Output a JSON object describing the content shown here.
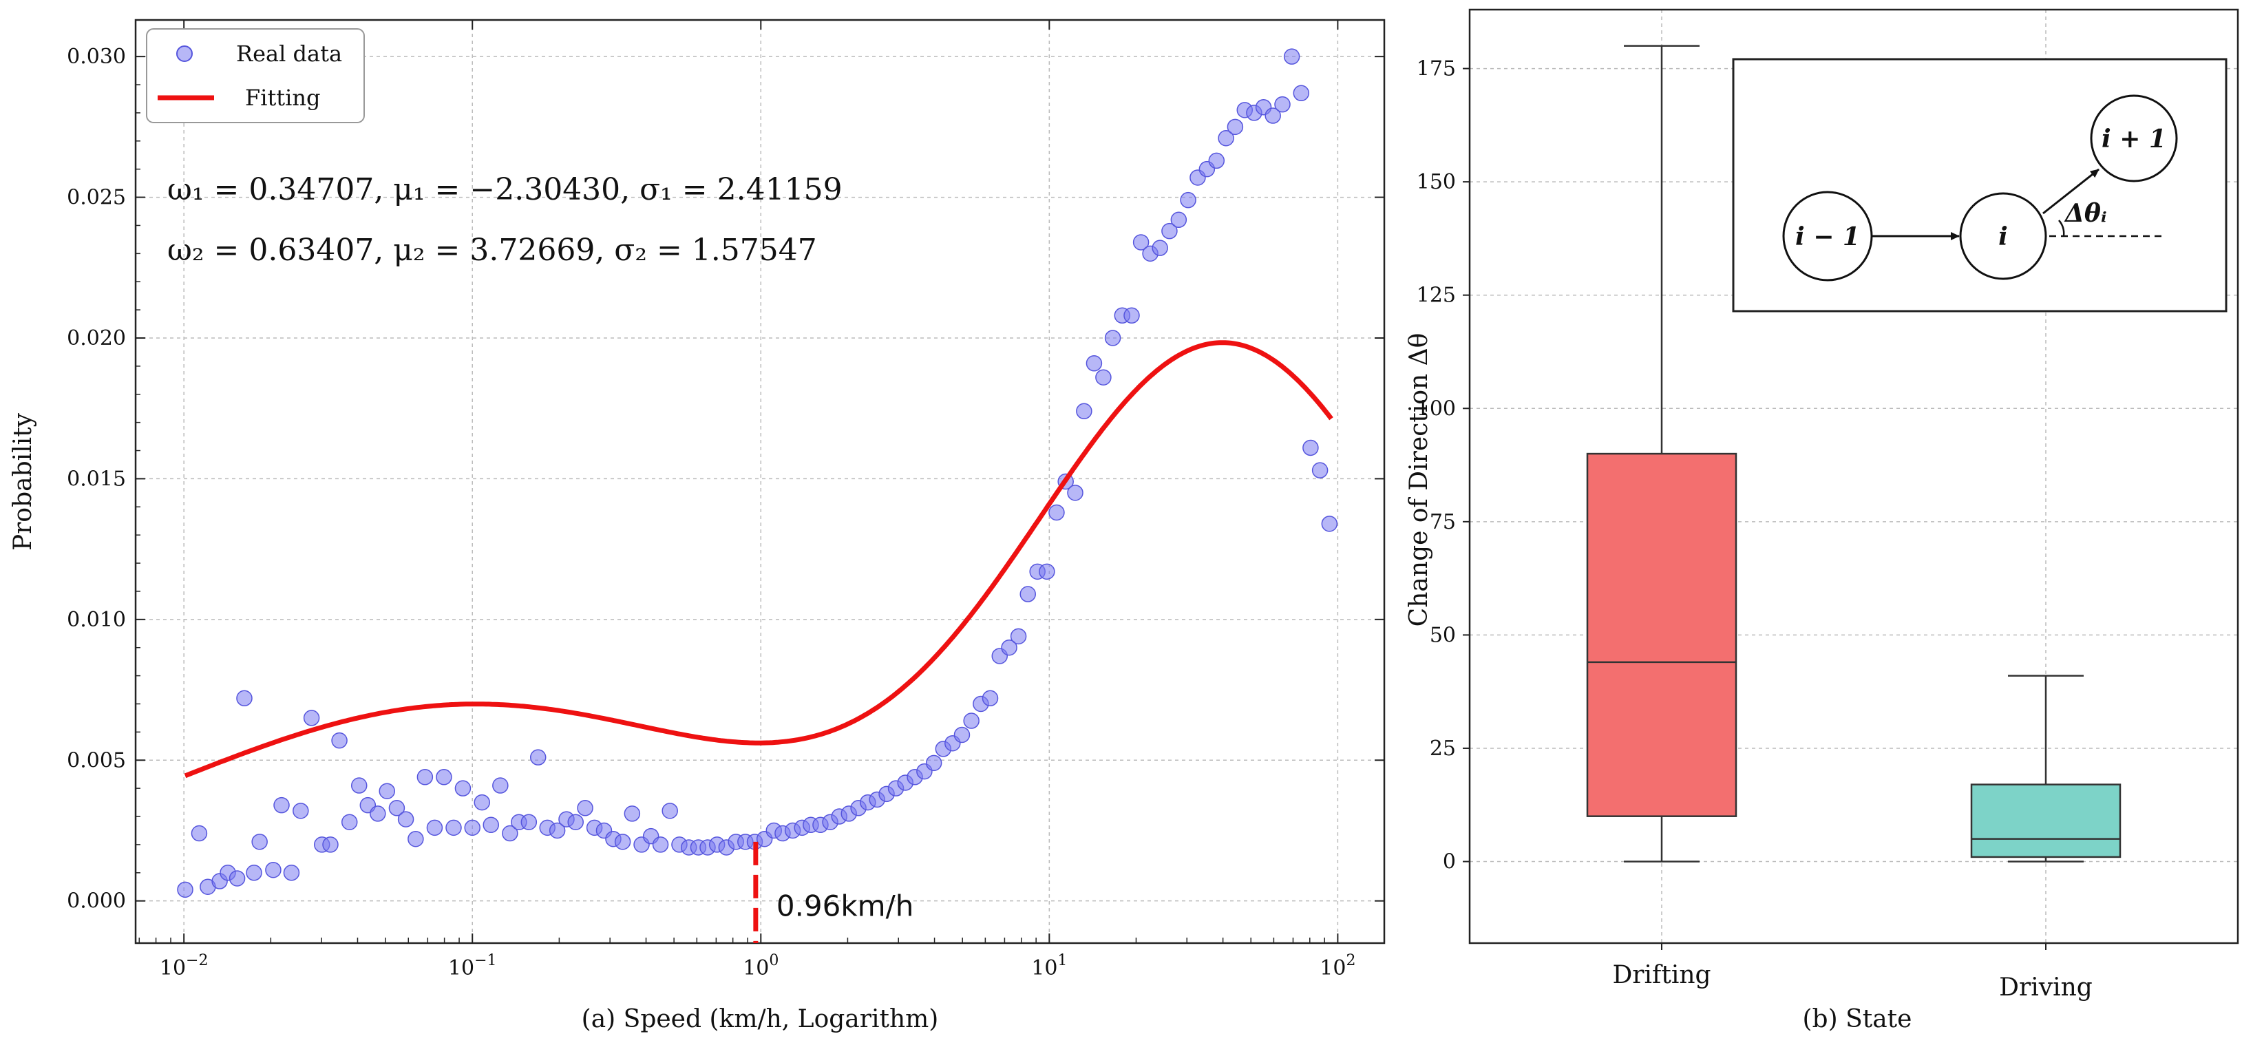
{
  "chart_data": [
    {
      "type": "scatter",
      "panel": "left",
      "xscale": "log",
      "xlabel": "(a) Speed (km/h, Logarithm)",
      "ylabel": "Probability",
      "xlim": [
        0.0068,
        145
      ],
      "ylim": [
        -0.0015,
        0.0313
      ],
      "xtick_exponents": [
        "-2",
        "-1",
        "0",
        "1",
        "2"
      ],
      "xtick_base": "10",
      "yticks": [
        "0.000",
        "0.005",
        "0.010",
        "0.015",
        "0.020",
        "0.025",
        "0.030"
      ],
      "ytick_values": [
        0,
        0.005,
        0.01,
        0.015,
        0.02,
        0.025,
        0.03
      ],
      "legend": {
        "position": "top-left",
        "real_data": "Real data",
        "fitting": "Fitting"
      },
      "formula_line1": "ω₁ = 0.34707,  μ₁ = −2.30430,  σ₁ = 2.41159",
      "formula_line2": "ω₂ = 0.63407,  μ₂ = 3.72669,  σ₂ = 1.57547",
      "threshold": {
        "x": 0.96,
        "label": "0.96km/h"
      },
      "fit": {
        "w1": 0.34707,
        "mu1": -2.3043,
        "s1": 2.41159,
        "w2": 0.63407,
        "mu2": 3.72669,
        "s2": 1.57547,
        "scale": 0.1216,
        "x_range": [
          0.0101,
          95
        ]
      },
      "series": [
        {
          "name": "Real data",
          "color": "#7b7bf0",
          "points": [
            [
              0.0101,
              0.0004
            ],
            [
              0.0113,
              0.0024
            ],
            [
              0.0121,
              0.0005
            ],
            [
              0.0133,
              0.0007
            ],
            [
              0.0142,
              0.001
            ],
            [
              0.0153,
              0.0008
            ],
            [
              0.0162,
              0.0072
            ],
            [
              0.0175,
              0.001
            ],
            [
              0.0183,
              0.0021
            ],
            [
              0.0204,
              0.0011
            ],
            [
              0.0218,
              0.0034
            ],
            [
              0.0236,
              0.001
            ],
            [
              0.0254,
              0.0032
            ],
            [
              0.0277,
              0.0065
            ],
            [
              0.0301,
              0.002
            ],
            [
              0.0322,
              0.002
            ],
            [
              0.0346,
              0.0057
            ],
            [
              0.0375,
              0.0028
            ],
            [
              0.0405,
              0.0041
            ],
            [
              0.0434,
              0.0034
            ],
            [
              0.047,
              0.0031
            ],
            [
              0.0506,
              0.0039
            ],
            [
              0.0547,
              0.0033
            ],
            [
              0.0588,
              0.0029
            ],
            [
              0.0636,
              0.0022
            ],
            [
              0.0685,
              0.0044
            ],
            [
              0.074,
              0.0026
            ],
            [
              0.0797,
              0.0044
            ],
            [
              0.0861,
              0.0026
            ],
            [
              0.0927,
              0.004
            ],
            [
              0.1,
              0.0026
            ],
            [
              0.108,
              0.0035
            ],
            [
              0.116,
              0.0027
            ],
            [
              0.125,
              0.0041
            ],
            [
              0.135,
              0.0024
            ],
            [
              0.145,
              0.0028
            ],
            [
              0.157,
              0.0028
            ],
            [
              0.169,
              0.0051
            ],
            [
              0.182,
              0.0026
            ],
            [
              0.197,
              0.0025
            ],
            [
              0.212,
              0.0029
            ],
            [
              0.228,
              0.0028
            ],
            [
              0.246,
              0.0033
            ],
            [
              0.265,
              0.0026
            ],
            [
              0.286,
              0.0025
            ],
            [
              0.308,
              0.0022
            ],
            [
              0.332,
              0.0021
            ],
            [
              0.358,
              0.0031
            ],
            [
              0.386,
              0.002
            ],
            [
              0.416,
              0.0023
            ],
            [
              0.449,
              0.002
            ],
            [
              0.484,
              0.0032
            ],
            [
              0.522,
              0.002
            ],
            [
              0.563,
              0.0019
            ],
            [
              0.607,
              0.0019
            ],
            [
              0.654,
              0.0019
            ],
            [
              0.705,
              0.002
            ],
            [
              0.76,
              0.0019
            ],
            [
              0.82,
              0.0021
            ],
            [
              0.884,
              0.0021
            ],
            [
              0.953,
              0.0021
            ],
            [
              1.03,
              0.0022
            ],
            [
              1.11,
              0.0025
            ],
            [
              1.19,
              0.0024
            ],
            [
              1.29,
              0.0025
            ],
            [
              1.39,
              0.0026
            ],
            [
              1.49,
              0.0027
            ],
            [
              1.61,
              0.0027
            ],
            [
              1.74,
              0.0028
            ],
            [
              1.87,
              0.003
            ],
            [
              2.02,
              0.0031
            ],
            [
              2.18,
              0.0033
            ],
            [
              2.35,
              0.0035
            ],
            [
              2.53,
              0.0036
            ],
            [
              2.73,
              0.0038
            ],
            [
              2.94,
              0.004
            ],
            [
              3.17,
              0.0042
            ],
            [
              3.42,
              0.0044
            ],
            [
              3.69,
              0.0046
            ],
            [
              3.98,
              0.0049
            ],
            [
              4.29,
              0.0054
            ],
            [
              4.62,
              0.0056
            ],
            [
              4.98,
              0.0059
            ],
            [
              5.37,
              0.0064
            ],
            [
              5.79,
              0.007
            ],
            [
              6.24,
              0.0072
            ],
            [
              6.73,
              0.0087
            ],
            [
              7.26,
              0.009
            ],
            [
              7.82,
              0.0094
            ],
            [
              8.43,
              0.0109
            ],
            [
              9.1,
              0.0117
            ],
            [
              9.81,
              0.0117
            ],
            [
              10.6,
              0.0138
            ],
            [
              11.4,
              0.0149
            ],
            [
              12.3,
              0.0145
            ],
            [
              13.2,
              0.0174
            ],
            [
              14.3,
              0.0191
            ],
            [
              15.4,
              0.0186
            ],
            [
              16.6,
              0.02
            ],
            [
              17.9,
              0.0208
            ],
            [
              19.3,
              0.0208
            ],
            [
              20.8,
              0.0234
            ],
            [
              22.4,
              0.023
            ],
            [
              24.2,
              0.0232
            ],
            [
              26.1,
              0.0238
            ],
            [
              28.1,
              0.0242
            ],
            [
              30.3,
              0.0249
            ],
            [
              32.7,
              0.0257
            ],
            [
              35.2,
              0.026
            ],
            [
              38.0,
              0.0263
            ],
            [
              41.0,
              0.0271
            ],
            [
              44.1,
              0.0275
            ],
            [
              47.6,
              0.0281
            ],
            [
              51.3,
              0.028
            ],
            [
              55.3,
              0.0282
            ],
            [
              59.6,
              0.0279
            ],
            [
              64.3,
              0.0283
            ],
            [
              69.3,
              0.03
            ],
            [
              74.7,
              0.0287
            ],
            [
              80.5,
              0.0161
            ],
            [
              86.8,
              0.0153
            ],
            [
              93.6,
              0.0134
            ]
          ]
        }
      ]
    },
    {
      "type": "box",
      "panel": "right",
      "xlabel": "(b) State",
      "ylabel": "Change of Direction Δθ",
      "ylim": [
        -18,
        188
      ],
      "yticks": [
        "0",
        "25",
        "50",
        "75",
        "100",
        "125",
        "150",
        "175"
      ],
      "ytick_values": [
        0,
        25,
        50,
        75,
        100,
        125,
        150,
        175
      ],
      "categories": [
        "Drifting",
        "Driving"
      ],
      "boxes": [
        {
          "name": "Drifting",
          "min": 0,
          "q1": 10,
          "median": 44,
          "q3": 90,
          "max": 180,
          "color": "#f36f6f"
        },
        {
          "name": "Driving",
          "min": 0,
          "q1": 1,
          "median": 5,
          "q3": 17,
          "max": 41,
          "color": "#7dd3c8"
        }
      ],
      "inset": {
        "node_prev": "i − 1",
        "node_cur": "i",
        "node_next": "i + 1",
        "angle_label": "Δθᵢ"
      }
    }
  ]
}
